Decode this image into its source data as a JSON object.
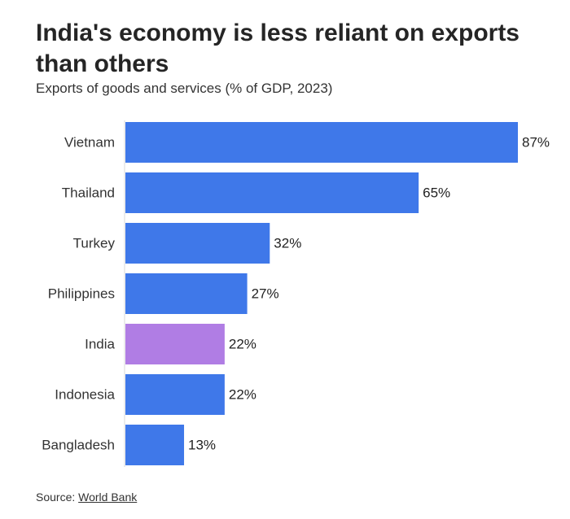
{
  "title": "India's economy is less reliant on exports than others",
  "subtitle": "Exports of goods and services (% of GDP, 2023)",
  "source": {
    "prefix": "Source:",
    "link_text": "World Bank"
  },
  "colors": {
    "default_bar": "#3f78e9",
    "highlight_bar": "#b07de4",
    "axis_line": "#d9d9d9"
  },
  "chart_data": {
    "type": "bar",
    "orientation": "horizontal",
    "categories": [
      "Vietnam",
      "Thailand",
      "Turkey",
      "Philippines",
      "India",
      "Indonesia",
      "Bangladesh"
    ],
    "values": [
      87,
      65,
      32,
      27,
      22,
      22,
      13
    ],
    "value_labels": [
      "87%",
      "65%",
      "32%",
      "27%",
      "22%",
      "22%",
      "13%"
    ],
    "highlight": "India",
    "unit": "%",
    "xlim": [
      0,
      87
    ],
    "grid": false,
    "legend": "none"
  }
}
